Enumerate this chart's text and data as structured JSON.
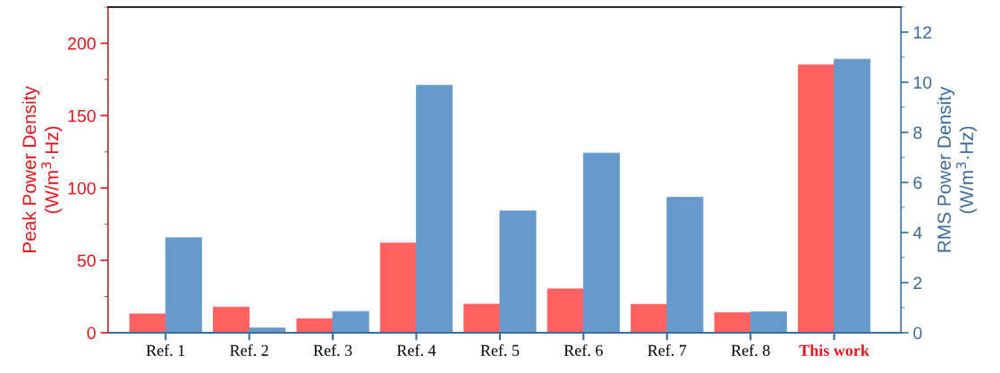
{
  "chart_data": {
    "type": "bar",
    "ylabel": "Peak Power Density\n(W/m$^{3}$·Hz)",
    "y2label": "RMS Power Density\n(W/m$^{3}$·Hz)",
    "categories": [
      "Ref. 1",
      "Ref. 2",
      "Ref. 3",
      "Ref. 4",
      "Ref. 5",
      "Ref. 6",
      "Ref. 7",
      "Ref. 8",
      "This work"
    ],
    "series": [
      {
        "color": "#ff6060",
        "axis": "y",
        "values": [
          13,
          17.7,
          9.7,
          62,
          19.7,
          30.3,
          19.6,
          13.8,
          185
        ]
      },
      {
        "color": "#6699cc",
        "axis": "y2",
        "values": [
          3.79,
          0.19,
          0.85,
          9.88,
          4.86,
          7.17,
          5.41,
          0.83,
          10.92
        ]
      }
    ],
    "ylim": [
      0,
      225
    ],
    "yticks": [
      0,
      50,
      100,
      150,
      200
    ],
    "y2lim": [
      0,
      13
    ],
    "y2ticks": [
      0,
      2,
      4,
      6,
      8,
      10,
      12
    ],
    "grid": false,
    "legend": false
  }
}
